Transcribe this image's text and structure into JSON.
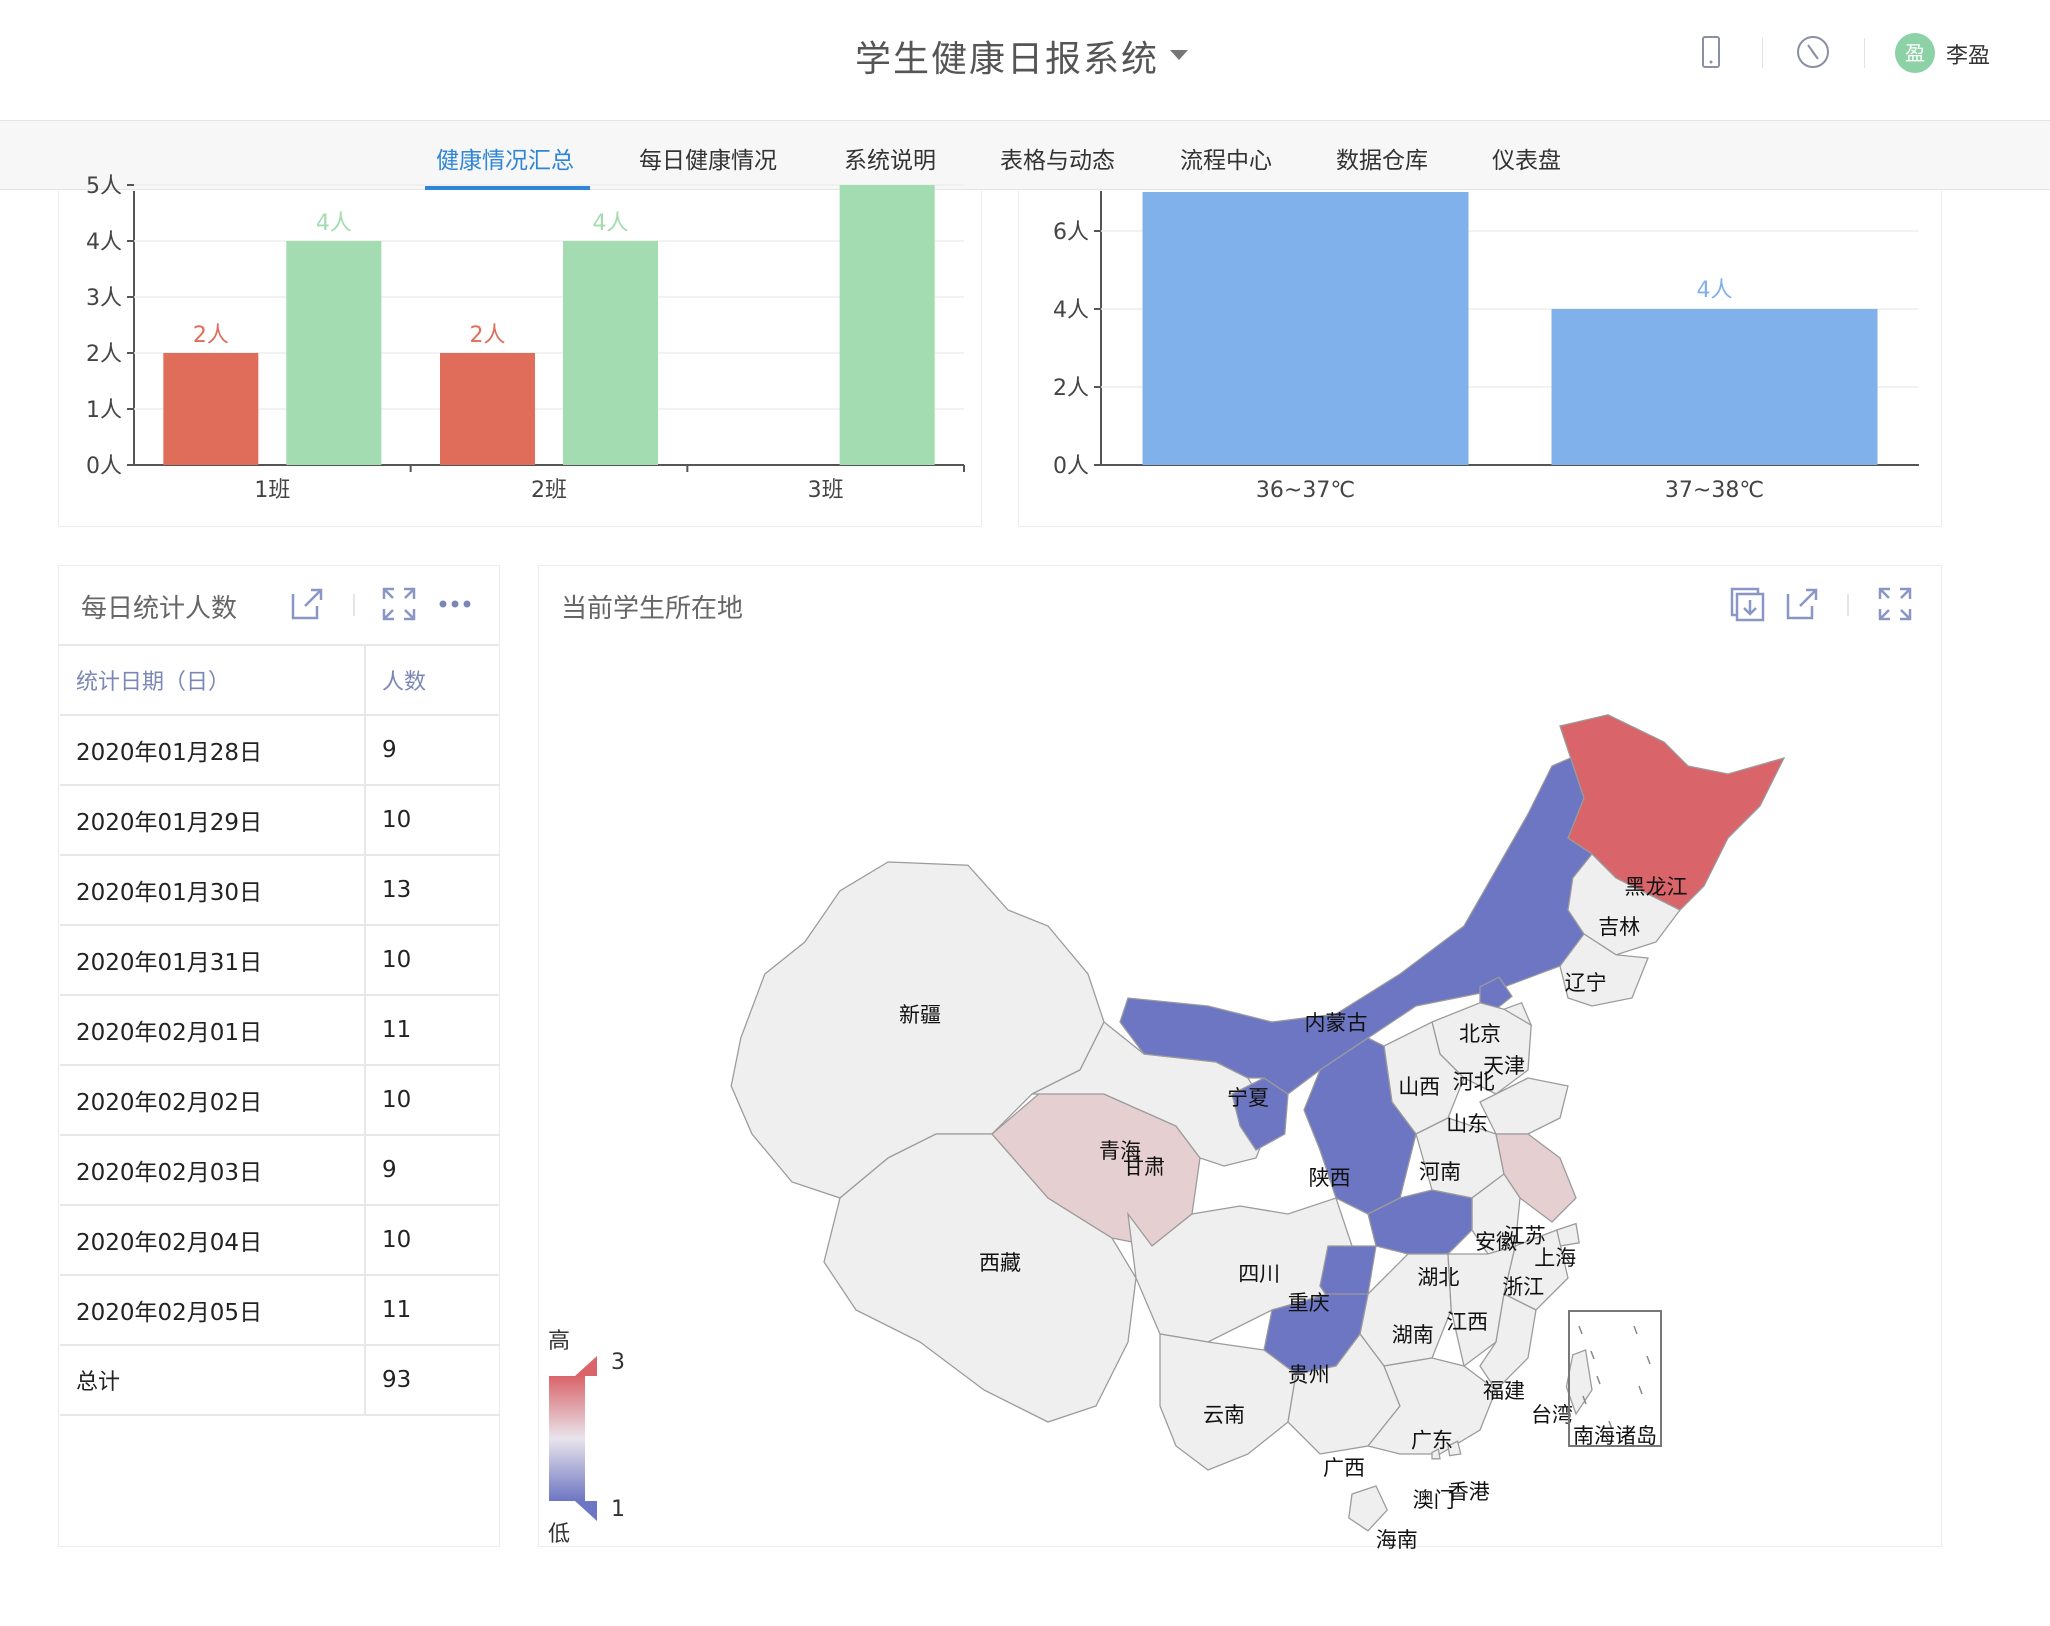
{
  "header": {
    "app_title": "学生健康日报系统",
    "user_avatar_char": "盈",
    "user_name": "李盈"
  },
  "nav": {
    "items": [
      {
        "label": "健康情况汇总",
        "active": true
      },
      {
        "label": "每日健康情况"
      },
      {
        "label": "系统说明"
      },
      {
        "label": "表格与动态"
      },
      {
        "label": "流程中心"
      },
      {
        "label": "数据仓库"
      },
      {
        "label": "仪表盘"
      }
    ]
  },
  "class_chart": {
    "type": "bar",
    "categories": [
      "1班",
      "2班",
      "3班"
    ],
    "ytick_labels": [
      "0人",
      "1人",
      "2人",
      "3人",
      "4人",
      "5人"
    ],
    "colors": [
      "#e06c5a",
      "#a2dcb0"
    ],
    "series": [
      {
        "values": [
          2,
          2,
          null
        ],
        "value_labels": [
          "2人",
          "2人",
          ""
        ]
      },
      {
        "values": [
          4,
          4,
          5
        ],
        "value_labels": [
          "4人",
          "4人",
          ""
        ]
      }
    ]
  },
  "temp_chart": {
    "type": "bar",
    "categories": [
      "36~37℃",
      "37~38℃"
    ],
    "ytick_labels": [
      "0人",
      "2人",
      "4人",
      "6人"
    ],
    "color": "#80b1ea",
    "values": [
      7,
      4
    ],
    "value_labels": [
      "",
      "4人"
    ]
  },
  "daily_table": {
    "title": "每日统计人数",
    "col_date": "统计日期（日）",
    "col_count": "人数",
    "rows": [
      {
        "date": "2020年01月28日",
        "count": "9"
      },
      {
        "date": "2020年01月29日",
        "count": "10"
      },
      {
        "date": "2020年01月30日",
        "count": "13"
      },
      {
        "date": "2020年01月31日",
        "count": "10"
      },
      {
        "date": "2020年02月01日",
        "count": "11"
      },
      {
        "date": "2020年02月02日",
        "count": "10"
      },
      {
        "date": "2020年02月03日",
        "count": "9"
      },
      {
        "date": "2020年02月04日",
        "count": "10"
      },
      {
        "date": "2020年02月05日",
        "count": "11"
      }
    ],
    "total_label": "总计",
    "total_value": "93"
  },
  "map_panel": {
    "title": "当前学生所在地",
    "legend": {
      "high_label": "高",
      "low_label": "低",
      "max": "3",
      "min": "1",
      "high_color": "#d9656a",
      "low_color": "#6d76c2"
    },
    "south_sea_label": "南海诸岛",
    "provinces": [
      {
        "name": "新疆",
        "level": 0
      },
      {
        "name": "西藏",
        "level": 0
      },
      {
        "name": "青海",
        "level": 2
      },
      {
        "name": "甘肃",
        "level": 0
      },
      {
        "name": "宁夏",
        "level": 1
      },
      {
        "name": "内蒙古",
        "level": 1
      },
      {
        "name": "黑龙江",
        "level": 3
      },
      {
        "name": "吉林",
        "level": 0
      },
      {
        "name": "辽宁",
        "level": 0
      },
      {
        "name": "北京",
        "level": 1
      },
      {
        "name": "天津",
        "level": 0
      },
      {
        "name": "河北",
        "level": 0
      },
      {
        "name": "山西",
        "level": 0
      },
      {
        "name": "山东",
        "level": 0
      },
      {
        "name": "陕西",
        "level": 1
      },
      {
        "name": "河南",
        "level": 0
      },
      {
        "name": "江苏",
        "level": 2
      },
      {
        "name": "安徽",
        "level": 0
      },
      {
        "name": "上海",
        "level": 0
      },
      {
        "name": "湖北",
        "level": 1
      },
      {
        "name": "四川",
        "level": 0
      },
      {
        "name": "重庆",
        "level": 1
      },
      {
        "name": "浙江",
        "level": 0
      },
      {
        "name": "湖南",
        "level": 0
      },
      {
        "name": "江西",
        "level": 0
      },
      {
        "name": "贵州",
        "level": 1
      },
      {
        "name": "福建",
        "level": 0
      },
      {
        "name": "台湾",
        "level": 0
      },
      {
        "name": "云南",
        "level": 0
      },
      {
        "name": "广西",
        "level": 0
      },
      {
        "name": "广东",
        "level": 0
      },
      {
        "name": "香港",
        "level": 0
      },
      {
        "name": "澳门",
        "level": 0
      },
      {
        "name": "海南",
        "level": 0
      }
    ]
  }
}
